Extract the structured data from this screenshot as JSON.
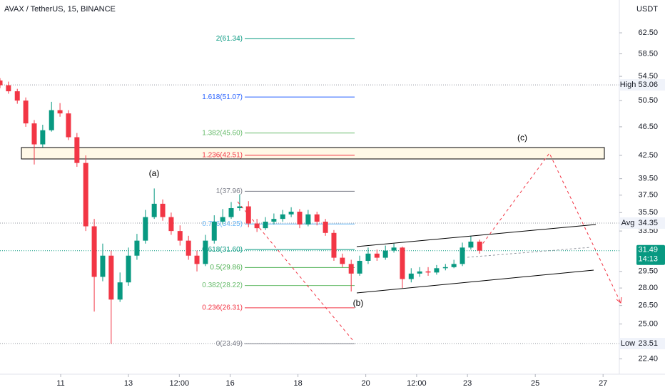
{
  "header": {
    "symbol": "AVAX / TetherUS, 15, BINANCE",
    "currency": "USDT"
  },
  "chart_data": {
    "type": "candlestick",
    "log_scale": true,
    "xlim": [
      9.21,
      27.48
    ],
    "ylim": [
      21.35,
      69.3
    ],
    "xticks": [
      11,
      13,
      {
        "value": 14.5,
        "label": "12:00"
      },
      16,
      18,
      20,
      {
        "value": 21.5,
        "label": "12:00"
      },
      23,
      25,
      27
    ],
    "yticks": [
      {
        "value": 62.5,
        "label": "62.50"
      },
      {
        "value": 58.5,
        "label": "58.50"
      },
      {
        "value": 54.5,
        "label": "54.50"
      },
      {
        "value": 50.5,
        "label": "50.50"
      },
      {
        "value": 46.5,
        "label": "46.50"
      },
      {
        "value": 42.5,
        "label": "42.50"
      },
      {
        "value": 39.5,
        "label": "39.50"
      },
      {
        "value": 37.5,
        "label": "37.50"
      },
      {
        "value": 35.5,
        "label": "35.50"
      },
      {
        "value": 33.5,
        "label": "33.50"
      },
      {
        "value": 29.5,
        "label": "29.50"
      },
      {
        "value": 28,
        "label": "28.00"
      },
      {
        "value": 26.5,
        "label": "26.50"
      },
      {
        "value": 25,
        "label": "25.00"
      },
      {
        "value": 22.4,
        "label": "22.40"
      }
    ],
    "x": [
      9.21,
      9.46,
      9.72,
      9.97,
      10.22,
      10.47,
      10.73,
      10.98,
      11.23,
      11.48,
      11.74,
      11.99,
      12.24,
      12.49,
      12.75,
      13.0,
      13.25,
      13.5,
      13.76,
      14.01,
      14.26,
      14.52,
      14.77,
      15.02,
      15.27,
      15.53,
      15.78,
      16.03,
      16.28,
      16.54,
      16.79,
      17.04,
      17.29,
      17.55,
      17.8,
      18.05,
      18.3,
      18.56,
      18.81,
      19.06,
      19.31,
      19.57,
      19.82,
      20.07,
      20.33,
      20.58,
      20.83,
      21.08,
      21.34,
      21.59,
      21.84,
      22.09,
      22.35,
      22.6,
      22.85,
      23.1,
      23.36
    ],
    "open": [
      53.8,
      53,
      52,
      50.5,
      47,
      44,
      46,
      49,
      48.5,
      45,
      41.5,
      34,
      29,
      31,
      27,
      28.5,
      31,
      32.5,
      35,
      36.5,
      35,
      33.5,
      32.5,
      31,
      30.2,
      32.5,
      34.5,
      35,
      36,
      36.2,
      34.3,
      33.8,
      34.5,
      34.8,
      35.3,
      35.6,
      34.2,
      35.3,
      34.5,
      33.3,
      30.8,
      30.2,
      29.3,
      30.5,
      31.2,
      30.8,
      31.5,
      31.8,
      28.8,
      29.3,
      29.5,
      29.4,
      29.8,
      29.9,
      30.2,
      31.8,
      32.4
    ],
    "high": [
      54.2,
      53.6,
      52.4,
      51,
      47.5,
      46.8,
      50.3,
      50.1,
      49,
      45.6,
      42.5,
      34.8,
      32.2,
      31.5,
      29.4,
      31.8,
      33.2,
      35.8,
      38.3,
      37,
      35.5,
      34.1,
      33,
      31.5,
      33.1,
      35.2,
      35.9,
      36.7,
      37.6,
      36.8,
      34.8,
      35,
      35.4,
      35.8,
      36.1,
      35.9,
      35.8,
      35.6,
      34.8,
      33.6,
      31.2,
      30.6,
      31,
      31.8,
      31.6,
      32,
      32.2,
      31.9,
      29.8,
      29.9,
      29.9,
      30.1,
      30.2,
      30.6,
      32.3,
      33,
      32.6
    ],
    "low": [
      52.5,
      51.6,
      50,
      46.5,
      41.3,
      43.6,
      45.8,
      48,
      44.6,
      41,
      33.5,
      26,
      28.6,
      23.5,
      26.8,
      28.2,
      30.6,
      32.2,
      34.8,
      34.6,
      33.1,
      32,
      30.6,
      29.5,
      30,
      32.2,
      34.2,
      34.8,
      35.7,
      33.9,
      33.4,
      33.6,
      34.2,
      34.5,
      35,
      33.8,
      34,
      34.1,
      33,
      30.5,
      29.9,
      27.7,
      29.1,
      30.2,
      30.5,
      30.6,
      31.3,
      28,
      28.5,
      29,
      29.1,
      29.2,
      29.6,
      29.8,
      30,
      31.6,
      31.2
    ],
    "close": [
      53,
      52,
      50.5,
      47,
      44,
      46,
      49,
      48.5,
      45,
      41.5,
      34,
      29,
      31,
      27,
      28.5,
      31,
      32.5,
      35,
      36.5,
      35,
      33.5,
      32.5,
      31,
      30.2,
      32.5,
      34.5,
      35,
      36,
      36.2,
      34.3,
      33.8,
      34.5,
      34.8,
      35.3,
      35.6,
      34.2,
      35.3,
      34.5,
      33.3,
      30.8,
      30.2,
      29.3,
      30.5,
      31.2,
      30.8,
      31.5,
      31.8,
      28.8,
      29.3,
      29.5,
      29.4,
      29.8,
      29.9,
      30.2,
      31.8,
      32.4,
      31.49
    ],
    "up_color": "#089981",
    "down_color": "#f23645",
    "levels": [
      {
        "name": "High",
        "value": 53.06
      },
      {
        "name": "Avg",
        "value": 34.35
      },
      {
        "name": "Low",
        "value": 23.51
      }
    ],
    "last": {
      "value": 31.49,
      "countdown": "14:13",
      "color": "#089981"
    },
    "fib_levels": [
      {
        "label": "2(61.34)",
        "value": 61.34,
        "color": "#089981"
      },
      {
        "label": "1.618(51.07)",
        "value": 51.07,
        "color": "#2962ff"
      },
      {
        "label": "1.382(45.60)",
        "value": 45.6,
        "color": "#66bb6a"
      },
      {
        "label": "1.236(42.51)",
        "value": 42.51,
        "color": "#f23645"
      },
      {
        "label": "1(37.96)",
        "value": 37.96,
        "color": "#787b86"
      },
      {
        "label": "0.786(34.25)",
        "value": 34.25,
        "color": "#64b5f6"
      },
      {
        "label": "0.618(31.60)",
        "value": 31.6,
        "color": "#089981"
      },
      {
        "label": "0.5(29.86)",
        "value": 29.86,
        "color": "#4caf50"
      },
      {
        "label": "0.382(28.22)",
        "value": 28.22,
        "color": "#66bb6a"
      },
      {
        "label": "0.236(26.31)",
        "value": 26.31,
        "color": "#f23645"
      },
      {
        "label": "0(23.49)",
        "value": 23.49,
        "color": "#787b86"
      }
    ],
    "annotations": [
      "(a)",
      "(b)",
      "(c)"
    ]
  }
}
